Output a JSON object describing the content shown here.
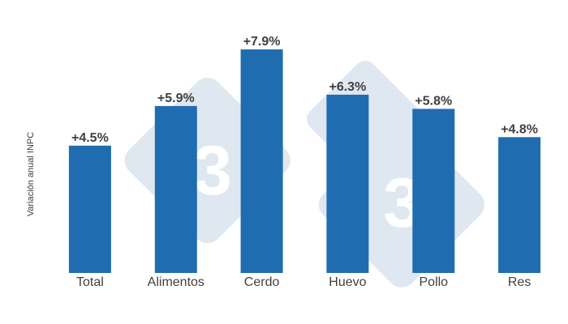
{
  "chart_data": {
    "type": "bar",
    "title": "",
    "xlabel": "",
    "ylabel": "Variación anual INPC",
    "categories": [
      "Total",
      "Alimentos",
      "Cerdo",
      "Huevo",
      "Pollo",
      "Res"
    ],
    "values": [
      4.5,
      5.9,
      7.9,
      6.3,
      5.8,
      4.8
    ],
    "data_labels": [
      "+4.5%",
      "+5.9%",
      "+7.9%",
      "+6.3%",
      "+5.8%",
      "+4.8%"
    ],
    "ylim": [
      0,
      7.9
    ],
    "grid": false,
    "legend": "none",
    "bar_color": "#1f6db0",
    "watermark_color": "#dfe8f1"
  }
}
